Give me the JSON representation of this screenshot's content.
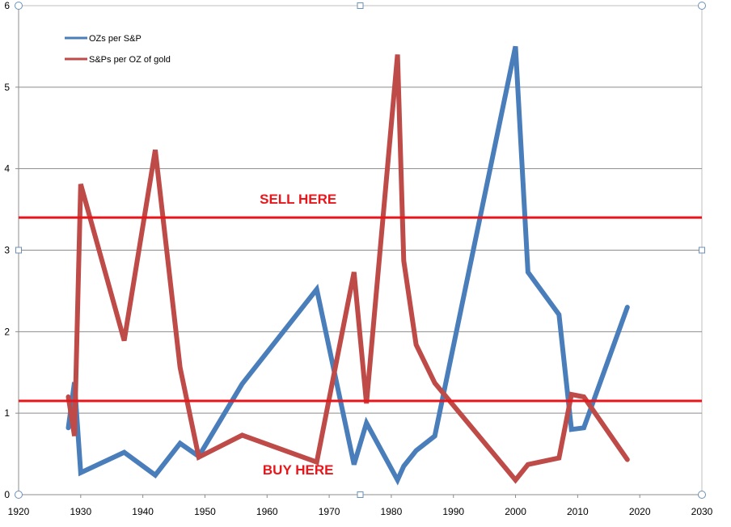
{
  "chart_data": {
    "type": "line",
    "xlim": [
      1920,
      2030
    ],
    "ylim": [
      0,
      6
    ],
    "x_ticks": [
      1920,
      1930,
      1940,
      1950,
      1960,
      1970,
      1980,
      1990,
      2000,
      2010,
      2020,
      2030
    ],
    "y_ticks": [
      0,
      1,
      2,
      3,
      4,
      5,
      6
    ],
    "grid": "horizontal",
    "legend_position": "top-left",
    "series": [
      {
        "name": "OZs per S&P",
        "color": "#4a7ebb",
        "points": [
          [
            1928,
            0.82
          ],
          [
            1929,
            1.38
          ],
          [
            1930,
            0.27
          ],
          [
            1937,
            0.52
          ],
          [
            1942,
            0.24
          ],
          [
            1946,
            0.63
          ],
          [
            1949,
            0.47
          ],
          [
            1956,
            1.36
          ],
          [
            1968,
            2.52
          ],
          [
            1974,
            0.37
          ],
          [
            1976,
            0.88
          ],
          [
            1981,
            0.18
          ],
          [
            1982,
            0.35
          ],
          [
            1984,
            0.54
          ],
          [
            1987,
            0.72
          ],
          [
            2000,
            5.5
          ],
          [
            2002,
            2.73
          ],
          [
            2007,
            2.21
          ],
          [
            2009,
            0.8
          ],
          [
            2011,
            0.82
          ],
          [
            2018,
            2.3
          ]
        ]
      },
      {
        "name": "S&Ps per OZ of gold",
        "color": "#be4b48",
        "points": [
          [
            1928,
            1.2
          ],
          [
            1929,
            0.72
          ],
          [
            1930,
            3.81
          ],
          [
            1937,
            1.89
          ],
          [
            1942,
            4.23
          ],
          [
            1946,
            1.56
          ],
          [
            1949,
            0.46
          ],
          [
            1956,
            0.73
          ],
          [
            1968,
            0.4
          ],
          [
            1974,
            2.73
          ],
          [
            1976,
            1.12
          ],
          [
            1981,
            5.4
          ],
          [
            1982,
            2.87
          ],
          [
            1984,
            1.84
          ],
          [
            1987,
            1.37
          ],
          [
            2000,
            0.18
          ],
          [
            2002,
            0.37
          ],
          [
            2007,
            0.45
          ],
          [
            2009,
            1.23
          ],
          [
            2011,
            1.2
          ],
          [
            2018,
            0.43
          ]
        ]
      }
    ],
    "reference_lines": [
      {
        "y": 3.4,
        "color": "#e8161b"
      },
      {
        "y": 1.15,
        "color": "#e8161b"
      }
    ],
    "annotations": [
      {
        "text": "SELL HERE",
        "x": 1965,
        "y": 3.57
      },
      {
        "text": "BUY HERE",
        "x": 1965,
        "y": 0.25
      }
    ]
  }
}
